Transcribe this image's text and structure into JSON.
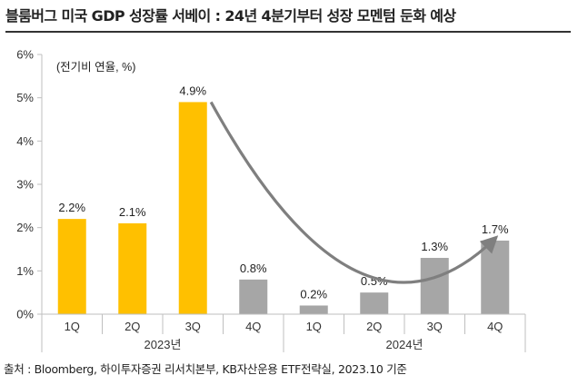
{
  "title": "블룸버그 미국 GDP 성장률 서베이 : 24년 4분기부터 성장 모멘텀 둔화 예상",
  "source": "출처 : Bloomberg, 하이투자증권 리서치본부, KB자산운용 ETF전략실, 2023.10 기준",
  "colors": {
    "highlight": "#FFC000",
    "forecast": "#A6A6A6",
    "trend_arrow": "#7F7F7F",
    "axis": "#BFBFBF"
  },
  "chart_data": {
    "type": "bar",
    "unit_note": "(전기비 연율, %)",
    "categories": [
      "1Q",
      "2Q",
      "3Q",
      "4Q",
      "1Q",
      "2Q",
      "3Q",
      "4Q"
    ],
    "year_groups": [
      {
        "label": "2023년",
        "span": [
          0,
          3
        ]
      },
      {
        "label": "2024년",
        "span": [
          4,
          7
        ]
      }
    ],
    "values": [
      2.2,
      2.1,
      4.9,
      0.8,
      0.2,
      0.5,
      1.3,
      1.7
    ],
    "data_labels": [
      "2.2%",
      "2.1%",
      "4.9%",
      "0.8%",
      "0.2%",
      "0.5%",
      "1.3%",
      "1.7%"
    ],
    "bar_colors": [
      "#FFC000",
      "#FFC000",
      "#FFC000",
      "#A6A6A6",
      "#A6A6A6",
      "#A6A6A6",
      "#A6A6A6",
      "#A6A6A6"
    ],
    "ylim": [
      0,
      6
    ],
    "yticks": [
      0,
      1,
      2,
      3,
      4,
      5,
      6
    ],
    "ytick_labels": [
      "0%",
      "1%",
      "2%",
      "3%",
      "4%",
      "5%",
      "6%"
    ],
    "grid": false,
    "legend": "none",
    "annotation": "curved trend arrow from 3Q 2023 bar top down to about 1% and back up to 4Q 2024",
    "trend_points": [
      [
        2.3,
        4.9
      ],
      [
        4.7,
        1.0
      ],
      [
        7.0,
        1.75
      ]
    ]
  }
}
